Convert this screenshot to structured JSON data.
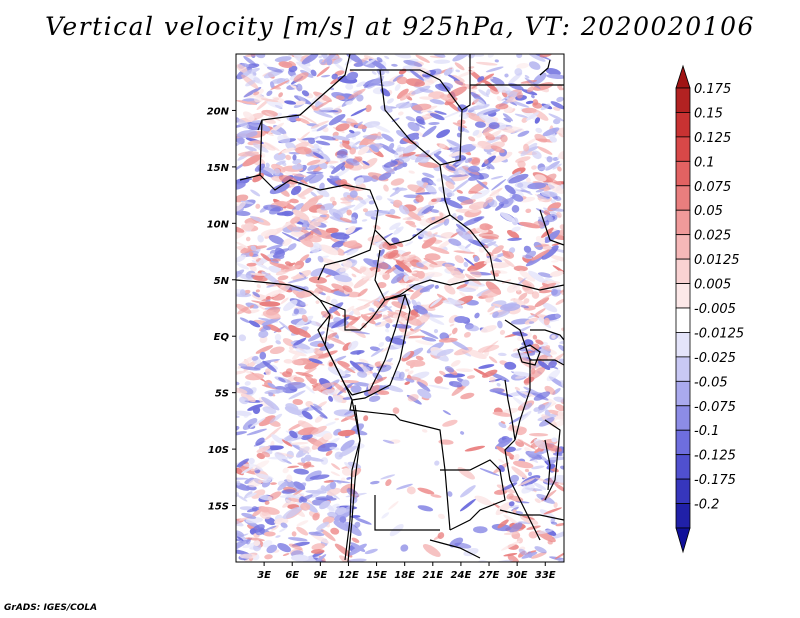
{
  "title": "Vertical velocity [m/s] at 925hPa, VT: 2020020106",
  "credit": "GrADS: IGES/COLA",
  "map": {
    "lon_range": [
      0,
      35
    ],
    "lat_range": [
      -20,
      25
    ],
    "lat_ticks": [
      {
        "value": 20,
        "label": "20N"
      },
      {
        "value": 15,
        "label": "15N"
      },
      {
        "value": 10,
        "label": "10N"
      },
      {
        "value": 5,
        "label": "5N"
      },
      {
        "value": 0,
        "label": "EQ"
      },
      {
        "value": -5,
        "label": "5S"
      },
      {
        "value": -10,
        "label": "10S"
      },
      {
        "value": -15,
        "label": "15S"
      }
    ],
    "lon_ticks": [
      {
        "value": 3,
        "label": "3E"
      },
      {
        "value": 6,
        "label": "6E"
      },
      {
        "value": 9,
        "label": "9E"
      },
      {
        "value": 12,
        "label": "12E"
      },
      {
        "value": 15,
        "label": "15E"
      },
      {
        "value": 18,
        "label": "18E"
      },
      {
        "value": 21,
        "label": "21E"
      },
      {
        "value": 24,
        "label": "24E"
      },
      {
        "value": 27,
        "label": "27E"
      },
      {
        "value": 30,
        "label": "30E"
      },
      {
        "value": 33,
        "label": "33E"
      }
    ]
  },
  "colorbar": {
    "levels": [
      {
        "label": "0.175",
        "color": "#b22222"
      },
      {
        "label": "0.15",
        "color": "#c83232"
      },
      {
        "label": "0.125",
        "color": "#d84848"
      },
      {
        "label": "0.1",
        "color": "#e26262"
      },
      {
        "label": "0.075",
        "color": "#e97e7e"
      },
      {
        "label": "0.05",
        "color": "#f09a9a"
      },
      {
        "label": "0.025",
        "color": "#f6b8b8"
      },
      {
        "label": "0.0125",
        "color": "#f9d2d2"
      },
      {
        "label": "0.005",
        "color": "#fce8e8"
      },
      {
        "label": "-0.005",
        "color": "#ffffff"
      },
      {
        "label": "-0.0125",
        "color": "#e4e4fa"
      },
      {
        "label": "-0.025",
        "color": "#c8c8f4"
      },
      {
        "label": "-0.05",
        "color": "#aaaaee"
      },
      {
        "label": "-0.075",
        "color": "#8c8ce6"
      },
      {
        "label": "-0.1",
        "color": "#6e6ede"
      },
      {
        "label": "-0.125",
        "color": "#5050cf"
      },
      {
        "label": "-0.175",
        "color": "#3636bd"
      },
      {
        "label": "-0.2",
        "color": "#2020a8"
      }
    ],
    "extend_top_color": "#a01414",
    "extend_bottom_color": "#10109a"
  }
}
